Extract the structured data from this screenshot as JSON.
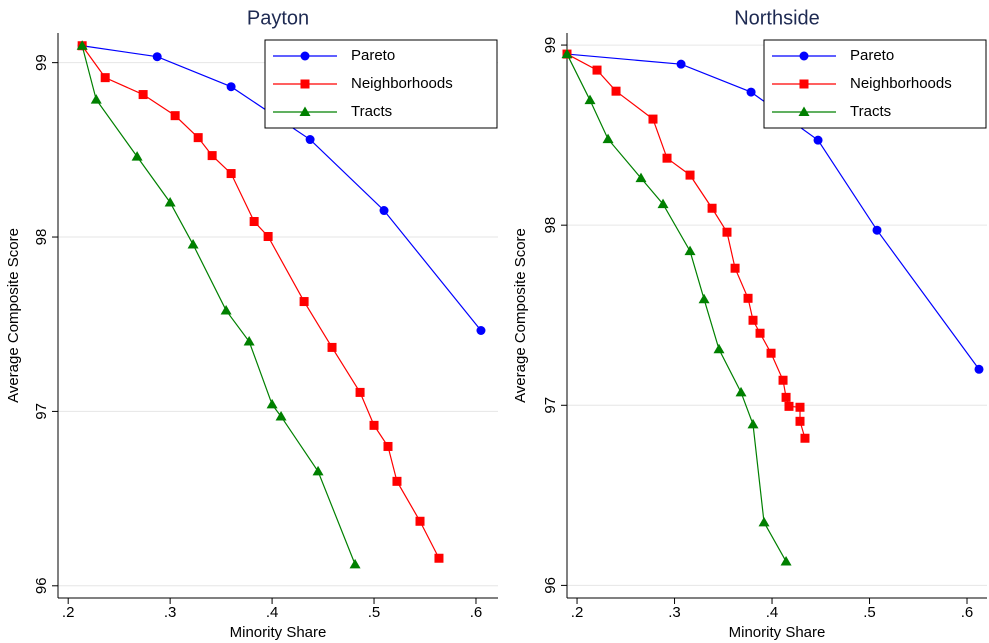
{
  "chart_data": [
    {
      "type": "line",
      "title": "Payton",
      "x_label": "Minority Share",
      "y_label": "Average Composite Score",
      "xlim": [
        0.19,
        0.6216
      ],
      "ylim": [
        95.93,
        99.17
      ],
      "xticks": [
        {
          "value": 0.2,
          "label": ".2"
        },
        {
          "value": 0.3,
          "label": ".3"
        },
        {
          "value": 0.4,
          "label": ".4"
        },
        {
          "value": 0.5,
          "label": ".5"
        },
        {
          "value": 0.6,
          "label": ".6"
        }
      ],
      "yticks": [
        96,
        97,
        98,
        99
      ],
      "grid": true,
      "legend": "upper right",
      "series": [
        {
          "name": "Pareto",
          "color": "#0000ff",
          "marker": "circle",
          "x": [
            0.2137,
            0.2873,
            0.3598,
            0.4373,
            0.5098,
            0.6049
          ],
          "values": [
            99.097,
            99.034,
            98.862,
            98.559,
            98.152,
            97.464
          ]
        },
        {
          "name": "Neighborhoods",
          "color": "#ff0000",
          "marker": "square",
          "x": [
            0.2137,
            0.2363,
            0.2735,
            0.3049,
            0.3275,
            0.3412,
            0.3598,
            0.3824,
            0.3961,
            0.4314,
            0.4588,
            0.4863,
            0.5,
            0.5137,
            0.5225,
            0.5451,
            0.5637
          ],
          "values": [
            99.097,
            98.914,
            98.817,
            98.696,
            98.57,
            98.467,
            98.364,
            98.089,
            98.003,
            97.63,
            97.367,
            97.109,
            96.92,
            96.799,
            96.599,
            96.37,
            96.158
          ]
        },
        {
          "name": "Tracts",
          "color": "#008000",
          "marker": "triangle",
          "x": [
            0.2137,
            0.2275,
            0.2676,
            0.3,
            0.3225,
            0.3549,
            0.3775,
            0.4,
            0.4088,
            0.4451,
            0.4814
          ],
          "values": [
            99.097,
            98.788,
            98.461,
            98.198,
            97.957,
            97.579,
            97.401,
            97.04,
            96.971,
            96.656,
            96.123
          ]
        }
      ]
    },
    {
      "type": "line",
      "title": "Northside",
      "x_label": "Minority Share",
      "y_label": "Average Composite Score",
      "xlim": [
        0.1897,
        0.6205
      ],
      "ylim": [
        95.93,
        99.067
      ],
      "xticks": [
        {
          "value": 0.2,
          "label": ".2"
        },
        {
          "value": 0.3,
          "label": ".3"
        },
        {
          "value": 0.4,
          "label": ".4"
        },
        {
          "value": 0.5,
          "label": ".5"
        },
        {
          "value": 0.6,
          "label": ".6"
        }
      ],
      "yticks": [
        96,
        97,
        98,
        99
      ],
      "grid": true,
      "legend": "upper right",
      "series": [
        {
          "name": "Pareto",
          "color": "#0000ff",
          "marker": "circle",
          "x": [
            0.1897,
            0.3067,
            0.3785,
            0.4472,
            0.5077,
            0.6123
          ],
          "values": [
            98.95,
            98.894,
            98.739,
            98.472,
            97.972,
            97.2
          ]
        },
        {
          "name": "Neighborhoods",
          "color": "#ff0000",
          "marker": "square",
          "x": [
            0.1897,
            0.2205,
            0.24,
            0.2779,
            0.2923,
            0.3159,
            0.3385,
            0.3538,
            0.3621,
            0.3754,
            0.3805,
            0.3877,
            0.399,
            0.4113,
            0.4144,
            0.4174,
            0.4287,
            0.4287,
            0.4338
          ],
          "values": [
            98.95,
            98.861,
            98.744,
            98.589,
            98.372,
            98.278,
            98.094,
            97.961,
            97.761,
            97.594,
            97.472,
            97.4,
            97.289,
            97.139,
            97.044,
            96.994,
            96.989,
            96.911,
            96.817
          ]
        },
        {
          "name": "Tracts",
          "color": "#008000",
          "marker": "triangle",
          "x": [
            0.1897,
            0.2133,
            0.2318,
            0.2656,
            0.2882,
            0.3159,
            0.3303,
            0.3456,
            0.3682,
            0.3805,
            0.3918,
            0.4144
          ],
          "values": [
            98.95,
            98.694,
            98.478,
            98.261,
            98.117,
            97.856,
            97.589,
            97.311,
            97.072,
            96.894,
            96.35,
            96.133
          ]
        }
      ]
    }
  ]
}
